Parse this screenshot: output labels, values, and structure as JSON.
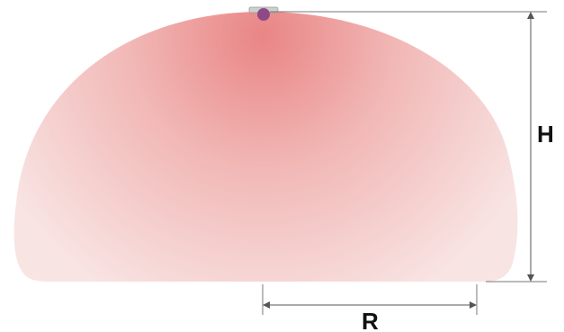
{
  "labels": {
    "height": "H",
    "radius": "R"
  },
  "colors": {
    "cone_center": "#e98585",
    "cone_mid": "#f1b8b6",
    "cone_edge": "#f7dedd",
    "sensor_body": "#cfcfcf",
    "sensor_dot": "#8e4a86",
    "dimension_line": "#555555",
    "label_text": "#111111"
  }
}
